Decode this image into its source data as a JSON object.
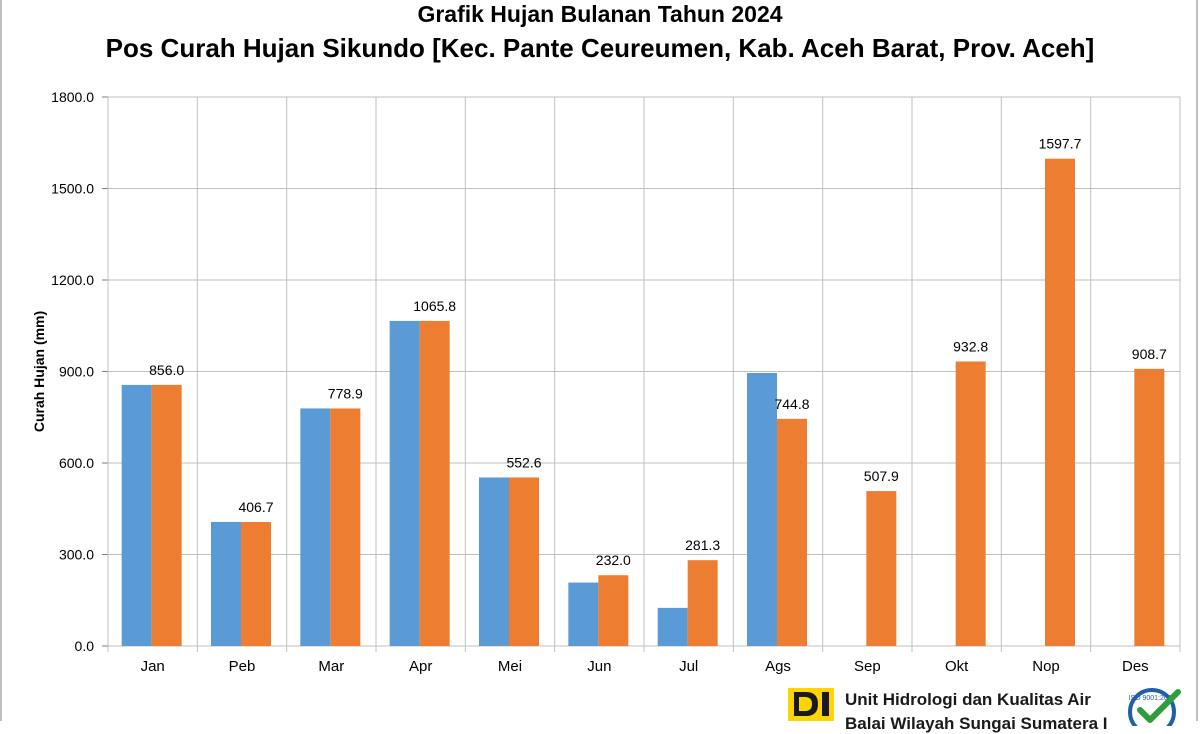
{
  "title": "Grafik Hujan Bulanan Tahun 2024",
  "subtitle": "Pos Curah Hujan Sikundo [Kec. Pante Ceureumen, Kab. Aceh Barat, Prov. Aceh]",
  "footer": {
    "org_line1": "Unit Hidrologi dan Kualitas Air",
    "org_line2": "Balai Wilayah Sungai Sumatera I",
    "iso_text": "ISO 9001:2008"
  },
  "colors": {
    "series_blue": "#5b9bd5",
    "series_orange": "#ed7d31",
    "grid": "#bfbfbf"
  },
  "chart_data": {
    "type": "bar",
    "ylabel": "Curah Hujan (mm)",
    "xlabel": "",
    "ylim": [
      0,
      1800
    ],
    "yticks": [
      "0.0",
      "300.0",
      "600.0",
      "900.0",
      "1200.0",
      "1500.0",
      "1800.0"
    ],
    "grid": true,
    "categories": [
      "Jan",
      "Peb",
      "Mar",
      "Apr",
      "Mei",
      "Jun",
      "Jul",
      "Ags",
      "Sep",
      "Okt",
      "Nop",
      "Des"
    ],
    "series": [
      {
        "values": [
          856.0,
          406.7,
          778.9,
          1065.8,
          552.6,
          208,
          125,
          895,
          null,
          null,
          null,
          null
        ]
      },
      {
        "values": [
          856.0,
          406.7,
          778.9,
          1065.8,
          552.6,
          232.0,
          281.3,
          744.8,
          507.9,
          932.8,
          1597.7,
          908.7
        ],
        "data_labels": [
          "856.0",
          "406.7",
          "778.9",
          "1065.8",
          "552.6",
          "232.0",
          "281.3",
          "744.8",
          "507.9",
          "932.8",
          "1597.7",
          "908.7"
        ]
      }
    ]
  }
}
